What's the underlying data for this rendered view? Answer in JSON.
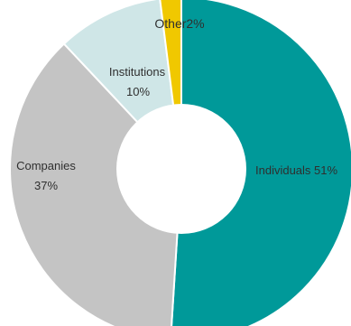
{
  "chart_data": {
    "type": "pie",
    "donut": true,
    "categories": [
      "Individuals",
      "Companies",
      "Institutions",
      "Other"
    ],
    "values": [
      51,
      37,
      10,
      2
    ],
    "value_suffix": "%",
    "colors": [
      "#009999",
      "#c4c4c4",
      "#cfe6e7",
      "#f0c800"
    ],
    "labels": {
      "individuals": "Individuals 51%",
      "companies_name": "Companies",
      "companies_value": "37%",
      "institutions_name": "Institutions",
      "institutions_value": "10%",
      "other": "Other2%"
    },
    "legend": "none",
    "start": "top",
    "direction": "clockwise"
  }
}
